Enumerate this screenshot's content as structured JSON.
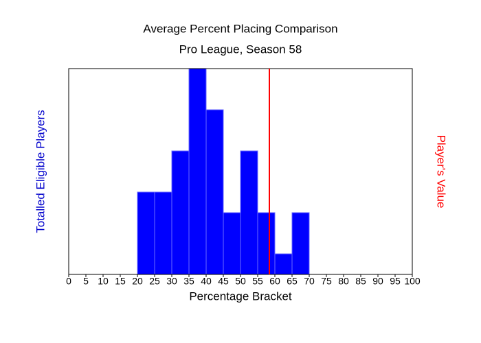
{
  "chart_data": {
    "type": "histogram",
    "title": "Average Percent Placing Comparison",
    "subtitle": "Pro League, Season 58",
    "x_label": "Percentage Bracket",
    "y_label": "Totalled Eligible Players",
    "bins": [
      20,
      25,
      30,
      35,
      40,
      45,
      50,
      55,
      60,
      65,
      70
    ],
    "values": [
      4,
      4,
      6,
      10,
      8,
      3,
      6,
      3,
      1,
      3
    ],
    "color": "#0000ff",
    "y_label_color": "#0000cc",
    "xlim": [
      0,
      100
    ],
    "xticks": [
      0,
      5,
      10,
      15,
      20,
      25,
      30,
      35,
      40,
      45,
      50,
      55,
      60,
      65,
      70,
      75,
      80,
      85,
      90,
      95,
      100
    ],
    "ylim": [
      0,
      10
    ],
    "marker": {
      "label": "Player's Value",
      "value": 58.4,
      "color": "#ff0000"
    }
  }
}
